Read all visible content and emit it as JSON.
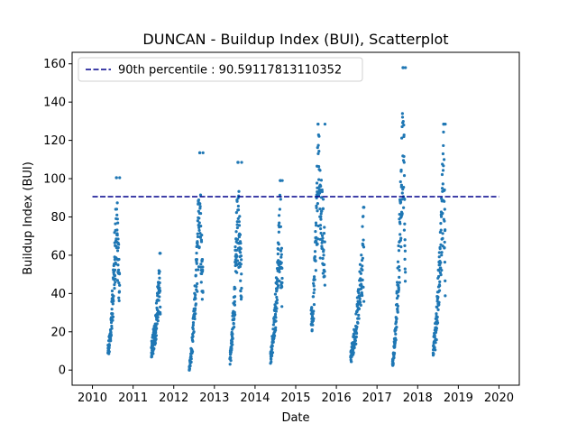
{
  "chart_data": {
    "type": "scatter",
    "title": "DUNCAN - Buildup Index (BUI), Scatterplot",
    "xlabel": "Date",
    "ylabel": "Buildup Index (BUI)",
    "xlim": [
      2009.5,
      2020.5
    ],
    "ylim": [
      -7.9,
      166
    ],
    "xticks": [
      "2010",
      "2011",
      "2012",
      "2013",
      "2014",
      "2015",
      "2016",
      "2017",
      "2018",
      "2019",
      "2020"
    ],
    "yticks": [
      "0",
      "20",
      "40",
      "60",
      "80",
      "100",
      "120",
      "140",
      "160"
    ],
    "grid": false,
    "legend_position": "upper-left",
    "colors": {
      "series": "#1f77b4",
      "reference_line": "#00008b"
    },
    "reference_line": {
      "label": "90th percentile : 90.59117813110352",
      "value": 90.59117813110352,
      "x_range": [
        2010.0,
        2020.0
      ]
    },
    "seasons": [
      {
        "year": 2010,
        "x_start": 2010.38,
        "x_end": 2010.67,
        "y_start": 12,
        "y_min": 3,
        "y_peak": 100.5,
        "peak_x": 2010.59
      },
      {
        "year": 2011,
        "x_start": 2011.45,
        "x_end": 2011.67,
        "y_start": 15,
        "y_min": 1,
        "y_peak": 61,
        "peak_x": 2011.66
      },
      {
        "year": 2012,
        "x_start": 2012.38,
        "x_end": 2012.72,
        "y_start": 2,
        "y_min": 0,
        "y_peak": 113.5,
        "peak_x": 2012.64
      },
      {
        "year": 2013,
        "x_start": 2013.38,
        "x_end": 2013.67,
        "y_start": 10,
        "y_min": 1,
        "y_peak": 108.5,
        "peak_x": 2013.58
      },
      {
        "year": 2014,
        "x_start": 2014.38,
        "x_end": 2014.67,
        "y_start": 10,
        "y_min": 0.5,
        "y_peak": 99,
        "peak_x": 2014.62
      },
      {
        "year": 2015,
        "x_start": 2015.38,
        "x_end": 2015.72,
        "y_start": 30,
        "y_min": 5,
        "y_peak": 128.5,
        "peak_x": 2015.55
      },
      {
        "year": 2016,
        "x_start": 2016.35,
        "x_end": 2016.68,
        "y_start": 10,
        "y_min": 1,
        "y_peak": 85,
        "peak_x": 2016.67
      },
      {
        "year": 2017,
        "x_start": 2017.38,
        "x_end": 2017.7,
        "y_start": 5,
        "y_min": 2,
        "y_peak": 158,
        "peak_x": 2017.64
      },
      {
        "year": 2018,
        "x_start": 2018.38,
        "x_end": 2018.68,
        "y_start": 15,
        "y_min": 2,
        "y_peak": 128.5,
        "peak_x": 2018.64
      }
    ]
  }
}
